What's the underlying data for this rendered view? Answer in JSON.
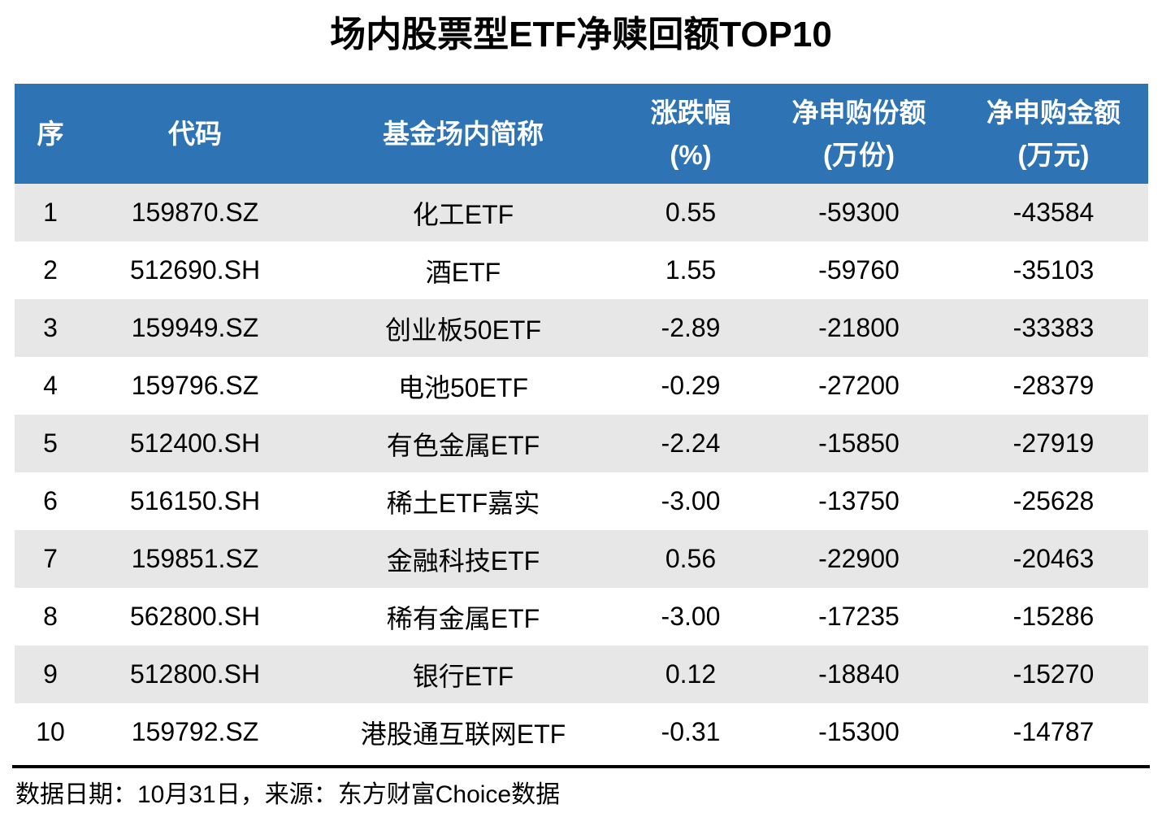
{
  "title": "场内股票型ETF净赎回额TOP10",
  "colors": {
    "header_bg": "#2E74B5",
    "header_text": "#FFFFFF",
    "row_alt_bg": "#E7E7E7",
    "row_bg": "#FFFFFF",
    "body_text": "#000000",
    "footer_rule": "#000000"
  },
  "table": {
    "headers": {
      "seq": "序",
      "code": "代码",
      "name": "基金场内简称",
      "change": "涨跌幅\n(%)",
      "shares": "净申购份额\n(万份)",
      "amount": "净申购金额\n(万元)"
    },
    "rows": [
      {
        "seq": "1",
        "code": "159870.SZ",
        "name": "化工ETF",
        "change": "0.55",
        "shares": "-59300",
        "amount": "-43584"
      },
      {
        "seq": "2",
        "code": "512690.SH",
        "name": "酒ETF",
        "change": "1.55",
        "shares": "-59760",
        "amount": "-35103"
      },
      {
        "seq": "3",
        "code": "159949.SZ",
        "name": "创业板50ETF",
        "change": "-2.89",
        "shares": "-21800",
        "amount": "-33383"
      },
      {
        "seq": "4",
        "code": "159796.SZ",
        "name": "电池50ETF",
        "change": "-0.29",
        "shares": "-27200",
        "amount": "-28379"
      },
      {
        "seq": "5",
        "code": "512400.SH",
        "name": "有色金属ETF",
        "change": "-2.24",
        "shares": "-15850",
        "amount": "-27919"
      },
      {
        "seq": "6",
        "code": "516150.SH",
        "name": "稀土ETF嘉实",
        "change": "-3.00",
        "shares": "-13750",
        "amount": "-25628"
      },
      {
        "seq": "7",
        "code": "159851.SZ",
        "name": "金融科技ETF",
        "change": "0.56",
        "shares": "-22900",
        "amount": "-20463"
      },
      {
        "seq": "8",
        "code": "562800.SH",
        "name": "稀有金属ETF",
        "change": "-3.00",
        "shares": "-17235",
        "amount": "-15286"
      },
      {
        "seq": "9",
        "code": "512800.SH",
        "name": "银行ETF",
        "change": "0.12",
        "shares": "-18840",
        "amount": "-15270"
      },
      {
        "seq": "10",
        "code": "159792.SZ",
        "name": "港股通互联网ETF",
        "change": "-0.31",
        "shares": "-15300",
        "amount": "-14787"
      }
    ]
  },
  "footer": {
    "note": "数据日期：10月31日，来源：东方财富Choice数据"
  },
  "chart_data": {
    "type": "table",
    "title": "场内股票型ETF净赎回额TOP10",
    "columns": [
      "序",
      "代码",
      "基金场内简称",
      "涨跌幅(%)",
      "净申购份额(万份)",
      "净申购金额(万元)"
    ],
    "rows": [
      [
        1,
        "159870.SZ",
        "化工ETF",
        0.55,
        -59300,
        -43584
      ],
      [
        2,
        "512690.SH",
        "酒ETF",
        1.55,
        -59760,
        -35103
      ],
      [
        3,
        "159949.SZ",
        "创业板50ETF",
        -2.89,
        -21800,
        -33383
      ],
      [
        4,
        "159796.SZ",
        "电池50ETF",
        -0.29,
        -27200,
        -28379
      ],
      [
        5,
        "512400.SH",
        "有色金属ETF",
        -2.24,
        -15850,
        -27919
      ],
      [
        6,
        "516150.SH",
        "稀土ETF嘉实",
        -3.0,
        -13750,
        -25628
      ],
      [
        7,
        "159851.SZ",
        "金融科技ETF",
        0.56,
        -22900,
        -20463
      ],
      [
        8,
        "562800.SH",
        "稀有金属ETF",
        -3.0,
        -17235,
        -15286
      ],
      [
        9,
        "512800.SH",
        "银行ETF",
        0.12,
        -18840,
        -15270
      ],
      [
        10,
        "159792.SZ",
        "港股通互联网ETF",
        -0.31,
        -15300,
        -14787
      ]
    ],
    "source_note": "数据日期：10月31日，来源：东方财富Choice数据",
    "layout": {
      "header_two_line_units": true,
      "zebra_striping": "odd-rows-gray"
    }
  }
}
